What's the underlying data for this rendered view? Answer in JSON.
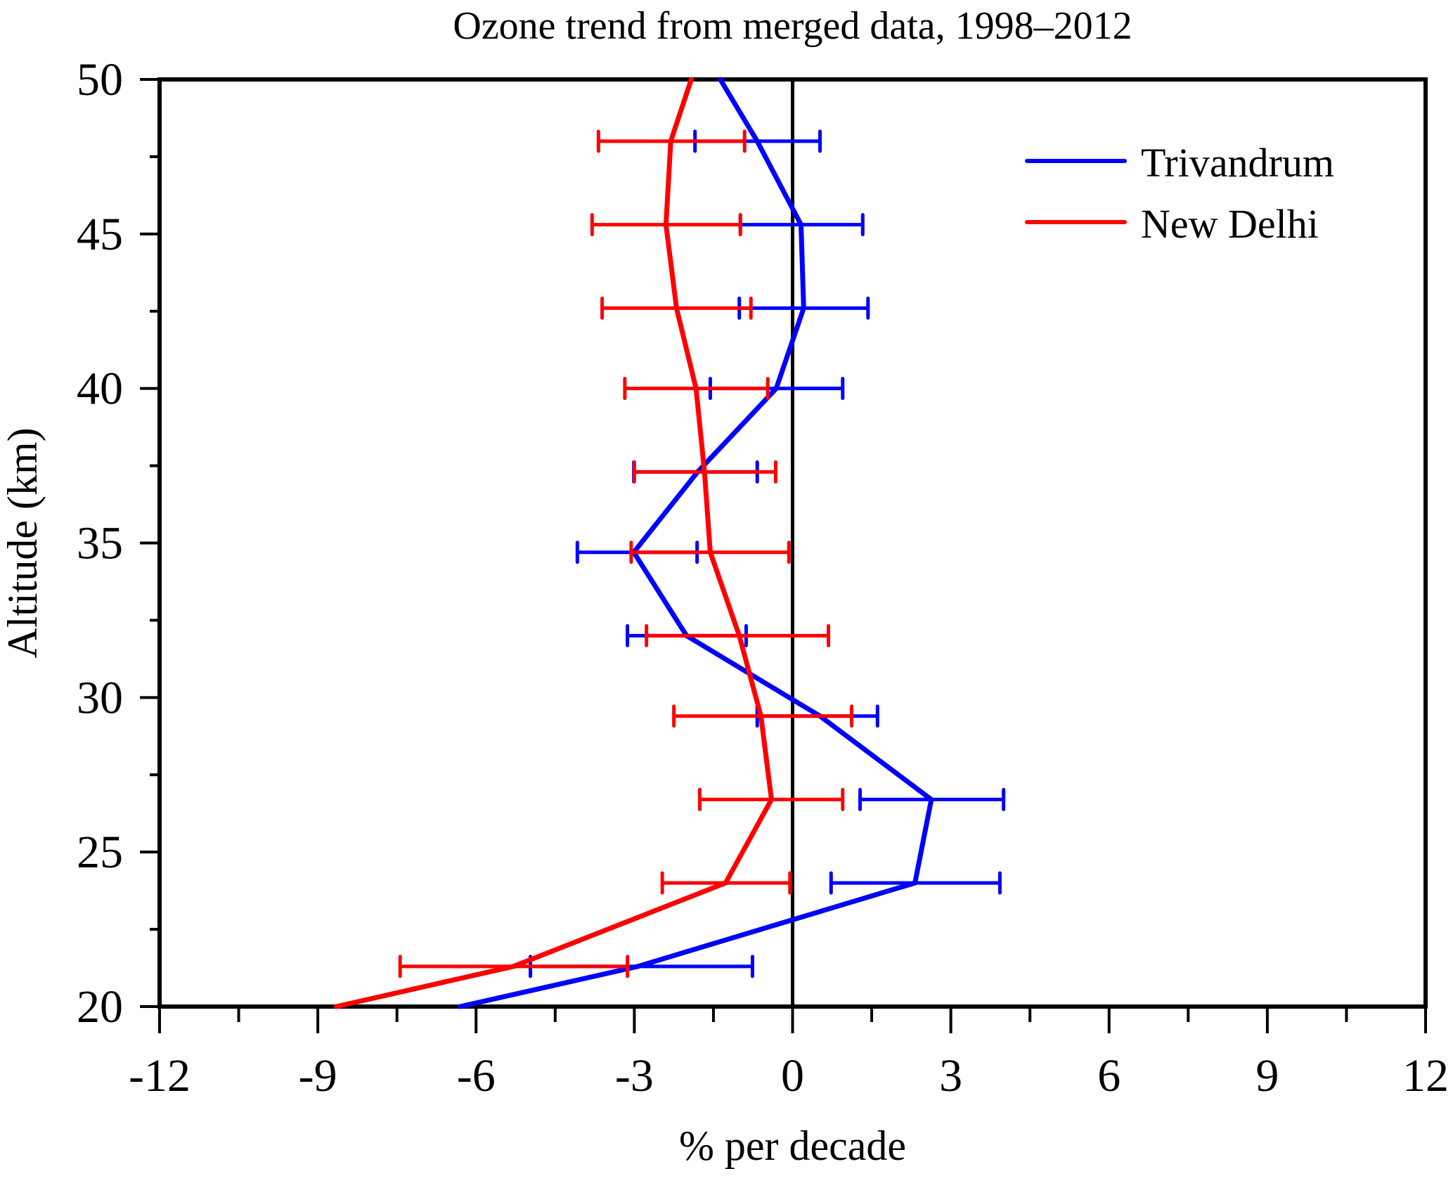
{
  "chart_data": {
    "type": "line",
    "title": "Ozone trend from merged data, 1998–2012",
    "xlabel": "% per decade",
    "ylabel": "Altitude (km)",
    "xlim": [
      -12,
      12
    ],
    "ylim": [
      20,
      50
    ],
    "xticks": [
      -12,
      -9,
      -6,
      -3,
      0,
      3,
      6,
      9,
      12
    ],
    "xtick_labels": [
      "-12",
      "-9",
      "-6",
      "-3",
      "0",
      "3",
      "6",
      "9",
      "12"
    ],
    "yticks": [
      20,
      25,
      30,
      35,
      40,
      45,
      50
    ],
    "ytick_labels": [
      "20",
      "25",
      "30",
      "35",
      "40",
      "45",
      "50"
    ],
    "x_minor_step": 1.5,
    "y_minor_step": 2.5,
    "grid": false,
    "zero_line": true,
    "legend_position": "top-right",
    "series": [
      {
        "name": "Trivandrum",
        "color": "#0000ff",
        "points": [
          {
            "alt": 50.0,
            "x": -1.37
          },
          {
            "alt": 48.0,
            "x": -0.67,
            "err_lo": -1.85,
            "err_hi": 0.52
          },
          {
            "alt": 45.3,
            "x": 0.16,
            "err_lo": -0.99,
            "err_hi": 1.33
          },
          {
            "alt": 42.6,
            "x": 0.21,
            "err_lo": -1.01,
            "err_hi": 1.43
          },
          {
            "alt": 40.0,
            "x": -0.31,
            "err_lo": -1.56,
            "err_hi": 0.95
          },
          {
            "alt": 37.3,
            "x": -1.8,
            "err_lo": -3.01,
            "err_hi": -0.67
          },
          {
            "alt": 34.7,
            "x": -3.01,
            "err_lo": -4.08,
            "err_hi": -1.81
          },
          {
            "alt": 32.0,
            "x": -2.01,
            "err_lo": -3.13,
            "err_hi": -0.88
          },
          {
            "alt": 29.4,
            "x": 0.52,
            "err_lo": -0.67,
            "err_hi": 1.61
          },
          {
            "alt": 26.7,
            "x": 2.63,
            "err_lo": 1.28,
            "err_hi": 4.0
          },
          {
            "alt": 24.0,
            "x": 2.32,
            "err_lo": 0.73,
            "err_hi": 3.93
          },
          {
            "alt": 21.3,
            "x": -2.93,
            "err_lo": -4.97,
            "err_hi": -0.76
          },
          {
            "alt": 20.0,
            "x": -6.3
          }
        ]
      },
      {
        "name": "New Delhi",
        "color": "#ff0000",
        "points": [
          {
            "alt": 50.0,
            "x": -1.92
          },
          {
            "alt": 48.0,
            "x": -2.31,
            "err_lo": -3.68,
            "err_hi": -0.91
          },
          {
            "alt": 45.3,
            "x": -2.4,
            "err_lo": -3.8,
            "err_hi": -0.99
          },
          {
            "alt": 42.6,
            "x": -2.2,
            "err_lo": -3.61,
            "err_hi": -0.79
          },
          {
            "alt": 40.0,
            "x": -1.83,
            "err_lo": -3.18,
            "err_hi": -0.47
          },
          {
            "alt": 37.3,
            "x": -1.67,
            "err_lo": -3.0,
            "err_hi": -0.32
          },
          {
            "alt": 34.7,
            "x": -1.56,
            "err_lo": -3.06,
            "err_hi": -0.07
          },
          {
            "alt": 32.0,
            "x": -1.01,
            "err_lo": -2.77,
            "err_hi": 0.68
          },
          {
            "alt": 29.4,
            "x": -0.6,
            "err_lo": -2.25,
            "err_hi": 1.12
          },
          {
            "alt": 26.7,
            "x": -0.4,
            "err_lo": -1.76,
            "err_hi": 0.95
          },
          {
            "alt": 24.0,
            "x": -1.27,
            "err_lo": -2.47,
            "err_hi": -0.05
          },
          {
            "alt": 21.3,
            "x": -5.29,
            "err_lo": -7.44,
            "err_hi": -3.13
          },
          {
            "alt": 20.0,
            "x": -8.65
          }
        ]
      }
    ]
  }
}
